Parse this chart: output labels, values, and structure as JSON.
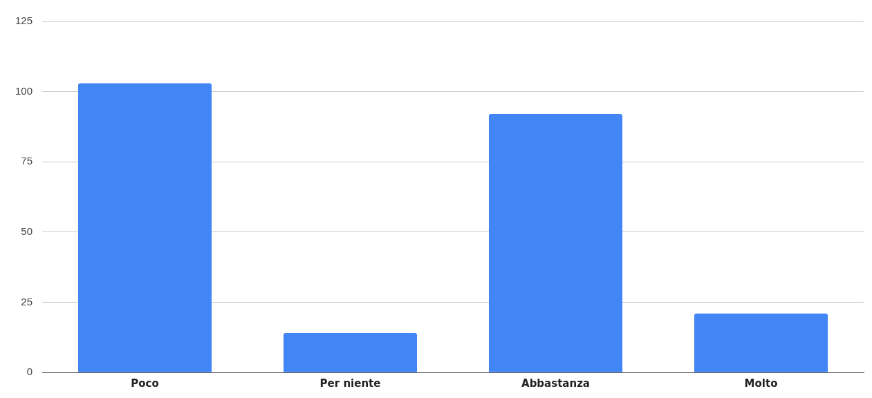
{
  "chart_data": {
    "type": "bar",
    "categories": [
      "Poco",
      "Per niente",
      "Abbastanza",
      "Molto"
    ],
    "values": [
      103,
      14,
      92,
      21
    ],
    "color": "#4285f4",
    "ylim": [
      0,
      125
    ],
    "yticks": [
      0,
      25,
      50,
      75,
      100,
      125
    ],
    "grid": "y"
  }
}
